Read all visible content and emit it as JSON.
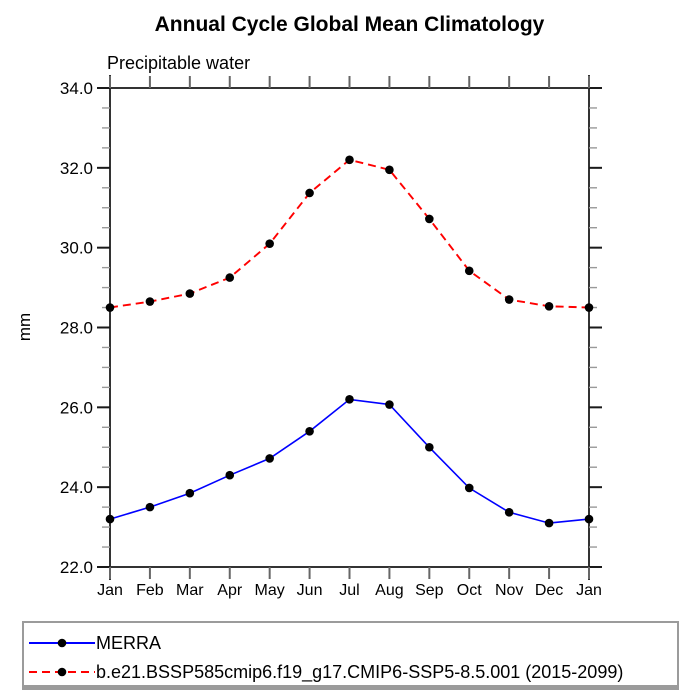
{
  "page": {
    "background_color": "#ffffff",
    "frame_color": "#333333"
  },
  "chart_data": {
    "type": "line",
    "title": "Annual Cycle Global Mean Climatology",
    "subtitle": "Precipitable water",
    "ylabel": "mm",
    "xlabel": "",
    "categories": [
      "Jan",
      "Feb",
      "Mar",
      "Apr",
      "May",
      "Jun",
      "Jul",
      "Aug",
      "Sep",
      "Oct",
      "Nov",
      "Dec",
      "Jan"
    ],
    "ylim": [
      22.0,
      34.0
    ],
    "ytick_labels": [
      "22.0",
      "24.0",
      "26.0",
      "28.0",
      "30.0",
      "32.0",
      "34.0"
    ],
    "ytick_major_step": 2.0,
    "ytick_minor_step": 0.5,
    "grid": "off",
    "legend_position": "bottom",
    "series": [
      {
        "name": "MERRA",
        "line_style": "solid",
        "color": "#0000ff",
        "marker": "circle",
        "marker_color": "#000000",
        "values": [
          23.2,
          23.5,
          23.85,
          24.3,
          24.72,
          25.4,
          26.2,
          26.07,
          25.0,
          23.98,
          23.37,
          23.1,
          23.2
        ]
      },
      {
        "name": "b.e21.BSSP585cmip6.f19_g17.CMIP6-SSP5-8.5.001 (2015-2099)",
        "line_style": "dashed",
        "color": "#ff0000",
        "marker": "circle",
        "marker_color": "#000000",
        "values": [
          28.5,
          28.65,
          28.85,
          29.25,
          30.1,
          31.37,
          32.2,
          31.95,
          30.72,
          29.42,
          28.7,
          28.53,
          28.5
        ]
      }
    ],
    "axis_style": {
      "tick_direction": "out",
      "major_tick_color": "#1a1a1a",
      "minor_tick_color": "#999999",
      "month_tick_color": "#666666"
    }
  }
}
